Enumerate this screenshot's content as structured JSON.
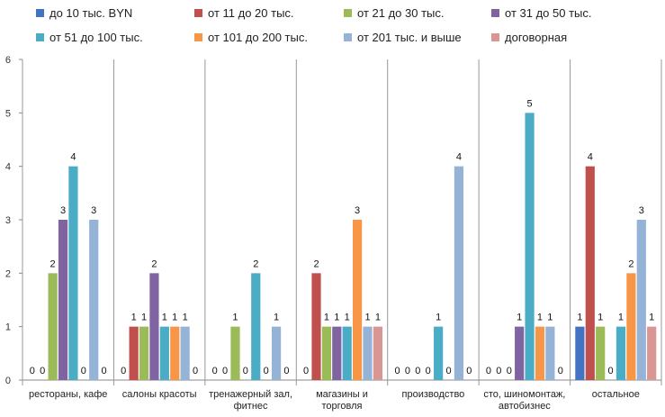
{
  "chart_data": {
    "type": "bar",
    "title": "",
    "xlabel": "",
    "ylabel": "",
    "ylim": [
      0,
      6
    ],
    "yticks": [
      0,
      1,
      2,
      3,
      4,
      5,
      6
    ],
    "grid": "vertical category separators",
    "legend_placement": "top",
    "categories": [
      [
        "рестораны, кафе"
      ],
      [
        "салоны красоты"
      ],
      [
        "тренажерный зал,",
        "фитнес"
      ],
      [
        "магазины и",
        "торговля"
      ],
      [
        "производство"
      ],
      [
        "сто, шиномонтаж,",
        "автобизнес"
      ],
      [
        "остальное"
      ]
    ],
    "series": [
      {
        "name": "до 10 тыс. BYN",
        "color": "#4472C4",
        "values": [
          0,
          0,
          0,
          0,
          0,
          0,
          1
        ]
      },
      {
        "name": "от 11 до 20 тыс.",
        "color": "#C0504D",
        "values": [
          0,
          1,
          0,
          2,
          0,
          0,
          4
        ]
      },
      {
        "name": "от 21 до 30 тыс.",
        "color": "#9BBB59",
        "values": [
          2,
          1,
          1,
          1,
          0,
          0,
          1
        ]
      },
      {
        "name": "от 31 до 50 тыс.",
        "color": "#8064A2",
        "values": [
          3,
          2,
          0,
          1,
          0,
          1,
          0
        ]
      },
      {
        "name": "от 51 до 100 тыс.",
        "color": "#4BACC6",
        "values": [
          4,
          1,
          2,
          1,
          1,
          5,
          1
        ]
      },
      {
        "name": "от 101 до 200 тыс.",
        "color": "#F79646",
        "values": [
          0,
          1,
          0,
          3,
          0,
          1,
          2
        ]
      },
      {
        "name": "от 201 тыс. и выше",
        "color": "#95B3D7",
        "values": [
          3,
          1,
          1,
          1,
          4,
          1,
          3
        ]
      },
      {
        "name": "договорная",
        "color": "#D99694",
        "values": [
          0,
          0,
          0,
          1,
          0,
          0,
          1
        ]
      }
    ]
  }
}
